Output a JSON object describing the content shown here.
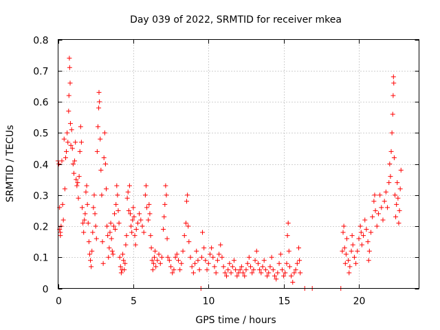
{
  "chart_data": {
    "type": "scatter",
    "title": "Day 039 of 2022, SRMTID for receiver mkea",
    "xlabel": "GPS time / hours",
    "ylabel": "SRMTID / TECUs",
    "xlim": [
      0,
      24
    ],
    "ylim": [
      0,
      0.8
    ],
    "x_ticks": [
      0,
      5,
      10,
      15,
      20
    ],
    "x_tick_labels": [
      "0",
      "5",
      "10",
      "15",
      "20"
    ],
    "y_ticks": [
      0,
      0.1,
      0.2,
      0.3,
      0.4,
      0.5,
      0.6,
      0.7,
      0.8
    ],
    "y_tick_labels": [
      "0",
      "0.1",
      "0.2",
      "0.3",
      "0.4",
      "0.5",
      "0.6",
      "0.7",
      "0.8"
    ],
    "grid": true,
    "marker": "+",
    "color": "#ff0000",
    "series": [
      {
        "points": [
          [
            0.0,
            0.41
          ],
          [
            0.05,
            0.4
          ],
          [
            0.1,
            0.26
          ],
          [
            0.1,
            0.19
          ],
          [
            0.15,
            0.18
          ],
          [
            0.15,
            0.17
          ],
          [
            0.2,
            0.2
          ],
          [
            0.25,
            0.41
          ],
          [
            0.3,
            0.27
          ],
          [
            0.35,
            0.22
          ],
          [
            0.4,
            0.48
          ],
          [
            0.45,
            0.32
          ],
          [
            0.5,
            0.42
          ],
          [
            0.55,
            0.44
          ],
          [
            0.6,
            0.5
          ],
          [
            0.65,
            0.47
          ],
          [
            0.7,
            0.57
          ],
          [
            0.72,
            0.62
          ],
          [
            0.75,
            0.74
          ],
          [
            0.77,
            0.71
          ],
          [
            0.8,
            0.66
          ],
          [
            0.82,
            0.53
          ],
          [
            0.85,
            0.46
          ],
          [
            0.9,
            0.51
          ],
          [
            0.95,
            0.45
          ],
          [
            1.0,
            0.4
          ],
          [
            1.05,
            0.37
          ],
          [
            1.1,
            0.41
          ],
          [
            1.15,
            0.47
          ],
          [
            1.2,
            0.35
          ],
          [
            1.25,
            0.33
          ],
          [
            1.3,
            0.34
          ],
          [
            1.35,
            0.29
          ],
          [
            1.4,
            0.36
          ],
          [
            1.45,
            0.44
          ],
          [
            1.5,
            0.52
          ],
          [
            1.55,
            0.47
          ],
          [
            1.6,
            0.26
          ],
          [
            1.65,
            0.21
          ],
          [
            1.7,
            0.18
          ],
          [
            1.75,
            0.22
          ],
          [
            1.8,
            0.24
          ],
          [
            1.85,
            0.31
          ],
          [
            1.9,
            0.33
          ],
          [
            1.95,
            0.27
          ],
          [
            2.0,
            0.21
          ],
          [
            2.05,
            0.15
          ],
          [
            2.1,
            0.11
          ],
          [
            2.15,
            0.09
          ],
          [
            2.2,
            0.07
          ],
          [
            2.25,
            0.12
          ],
          [
            2.3,
            0.18
          ],
          [
            2.35,
            0.26
          ],
          [
            2.4,
            0.3
          ],
          [
            2.45,
            0.24
          ],
          [
            2.5,
            0.2
          ],
          [
            2.55,
            0.16
          ],
          [
            2.6,
            0.44
          ],
          [
            2.65,
            0.52
          ],
          [
            2.7,
            0.58
          ],
          [
            2.72,
            0.63
          ],
          [
            2.75,
            0.6
          ],
          [
            2.8,
            0.48
          ],
          [
            2.85,
            0.38
          ],
          [
            2.9,
            0.3
          ],
          [
            2.95,
            0.15
          ],
          [
            3.0,
            0.08
          ],
          [
            3.05,
            0.42
          ],
          [
            3.1,
            0.5
          ],
          [
            3.15,
            0.4
          ],
          [
            3.2,
            0.32
          ],
          [
            3.25,
            0.2
          ],
          [
            3.3,
            0.17
          ],
          [
            3.35,
            0.1
          ],
          [
            3.4,
            0.13
          ],
          [
            3.45,
            0.18
          ],
          [
            3.5,
            0.21
          ],
          [
            3.55,
            0.16
          ],
          [
            3.6,
            0.12
          ],
          [
            3.65,
            0.11
          ],
          [
            3.7,
            0.2
          ],
          [
            3.75,
            0.24
          ],
          [
            3.8,
            0.19
          ],
          [
            3.85,
            0.27
          ],
          [
            3.9,
            0.33
          ],
          [
            3.95,
            0.3
          ],
          [
            4.0,
            0.25
          ],
          [
            4.05,
            0.21
          ],
          [
            4.1,
            0.1
          ],
          [
            4.15,
            0.07
          ],
          [
            4.2,
            0.05
          ],
          [
            4.25,
            0.06
          ],
          [
            4.3,
            0.11
          ],
          [
            4.35,
            0.09
          ],
          [
            4.4,
            0.06
          ],
          [
            4.45,
            0.08
          ],
          [
            4.5,
            0.14
          ],
          [
            4.55,
            0.17
          ],
          [
            4.6,
            0.29
          ],
          [
            4.65,
            0.31
          ],
          [
            4.7,
            0.25
          ],
          [
            4.75,
            0.33
          ],
          [
            4.8,
            0.24
          ],
          [
            4.85,
            0.2
          ],
          [
            4.9,
            0.18
          ],
          [
            4.95,
            0.22
          ],
          [
            5.0,
            0.26
          ],
          [
            5.05,
            0.23
          ],
          [
            5.1,
            0.17
          ],
          [
            5.15,
            0.14
          ],
          [
            5.2,
            0.19
          ],
          [
            5.3,
            0.21
          ],
          [
            5.4,
            0.24
          ],
          [
            5.5,
            0.22
          ],
          [
            5.6,
            0.2
          ],
          [
            5.7,
            0.18
          ],
          [
            5.8,
            0.3
          ],
          [
            5.85,
            0.33
          ],
          [
            5.9,
            0.26
          ],
          [
            6.0,
            0.22
          ],
          [
            6.05,
            0.27
          ],
          [
            6.1,
            0.24
          ],
          [
            6.15,
            0.17
          ],
          [
            6.2,
            0.13
          ],
          [
            6.25,
            0.09
          ],
          [
            6.3,
            0.06
          ],
          [
            6.35,
            0.08
          ],
          [
            6.4,
            0.1
          ],
          [
            6.45,
            0.12
          ],
          [
            6.5,
            0.07
          ],
          [
            6.6,
            0.09
          ],
          [
            6.7,
            0.11
          ],
          [
            6.8,
            0.08
          ],
          [
            6.9,
            0.1
          ],
          [
            7.0,
            0.19
          ],
          [
            7.05,
            0.23
          ],
          [
            7.1,
            0.27
          ],
          [
            7.15,
            0.33
          ],
          [
            7.2,
            0.3
          ],
          [
            7.25,
            0.16
          ],
          [
            7.3,
            0.1
          ],
          [
            7.4,
            0.09
          ],
          [
            7.5,
            0.07
          ],
          [
            7.6,
            0.05
          ],
          [
            7.7,
            0.06
          ],
          [
            7.8,
            0.1
          ],
          [
            7.9,
            0.11
          ],
          [
            8.0,
            0.09
          ],
          [
            8.1,
            0.06
          ],
          [
            8.2,
            0.08
          ],
          [
            8.3,
            0.12
          ],
          [
            8.4,
            0.17
          ],
          [
            8.5,
            0.21
          ],
          [
            8.55,
            0.28
          ],
          [
            8.6,
            0.3
          ],
          [
            8.65,
            0.2
          ],
          [
            8.7,
            0.15
          ],
          [
            8.8,
            0.1
          ],
          [
            8.9,
            0.07
          ],
          [
            9.0,
            0.05
          ],
          [
            9.1,
            0.08
          ],
          [
            9.2,
            0.12
          ],
          [
            9.3,
            0.09
          ],
          [
            9.4,
            0.06
          ],
          [
            9.5,
            0.0
          ],
          [
            9.55,
            0.1
          ],
          [
            9.6,
            0.18
          ],
          [
            9.7,
            0.13
          ],
          [
            9.8,
            0.09
          ],
          [
            9.9,
            0.06
          ],
          [
            10.0,
            0.08
          ],
          [
            10.1,
            0.11
          ],
          [
            10.2,
            0.13
          ],
          [
            10.3,
            0.1
          ],
          [
            10.4,
            0.07
          ],
          [
            10.5,
            0.05
          ],
          [
            10.6,
            0.09
          ],
          [
            10.7,
            0.11
          ],
          [
            10.8,
            0.14
          ],
          [
            10.9,
            0.1
          ],
          [
            11.0,
            0.07
          ],
          [
            11.1,
            0.05
          ],
          [
            11.2,
            0.04
          ],
          [
            11.3,
            0.06
          ],
          [
            11.4,
            0.08
          ],
          [
            11.5,
            0.05
          ],
          [
            11.6,
            0.07
          ],
          [
            11.7,
            0.09
          ],
          [
            11.8,
            0.06
          ],
          [
            11.9,
            0.04
          ],
          [
            12.0,
            0.05
          ],
          [
            12.1,
            0.06
          ],
          [
            12.2,
            0.07
          ],
          [
            12.3,
            0.05
          ],
          [
            12.4,
            0.04
          ],
          [
            12.5,
            0.06
          ],
          [
            12.6,
            0.08
          ],
          [
            12.7,
            0.1
          ],
          [
            12.8,
            0.07
          ],
          [
            12.9,
            0.05
          ],
          [
            13.0,
            0.06
          ],
          [
            13.1,
            0.09
          ],
          [
            13.2,
            0.12
          ],
          [
            13.3,
            0.08
          ],
          [
            13.4,
            0.06
          ],
          [
            13.5,
            0.05
          ],
          [
            13.6,
            0.07
          ],
          [
            13.7,
            0.09
          ],
          [
            13.8,
            0.06
          ],
          [
            13.9,
            0.04
          ],
          [
            14.0,
            0.05
          ],
          [
            14.1,
            0.07
          ],
          [
            14.2,
            0.1
          ],
          [
            14.3,
            0.06
          ],
          [
            14.4,
            0.04
          ],
          [
            14.5,
            0.03
          ],
          [
            14.6,
            0.05
          ],
          [
            14.7,
            0.08
          ],
          [
            14.8,
            0.11
          ],
          [
            14.9,
            0.06
          ],
          [
            15.0,
            0.04
          ],
          [
            15.1,
            0.05
          ],
          [
            15.2,
            0.08
          ],
          [
            15.25,
            0.17
          ],
          [
            15.3,
            0.21
          ],
          [
            15.35,
            0.12
          ],
          [
            15.4,
            0.07
          ],
          [
            15.5,
            0.04
          ],
          [
            15.6,
            0.02
          ],
          [
            15.7,
            0.05
          ],
          [
            15.8,
            0.06
          ],
          [
            15.9,
            0.08
          ],
          [
            16.0,
            0.13
          ],
          [
            16.05,
            0.09
          ],
          [
            16.1,
            0.05
          ],
          [
            16.4,
            0.0
          ],
          [
            16.9,
            0.0
          ],
          [
            18.8,
            0.0
          ],
          [
            18.9,
            0.12
          ],
          [
            18.95,
            0.18
          ],
          [
            19.0,
            0.2
          ],
          [
            19.05,
            0.13
          ],
          [
            19.1,
            0.08
          ],
          [
            19.15,
            0.11
          ],
          [
            19.2,
            0.16
          ],
          [
            19.3,
            0.09
          ],
          [
            19.35,
            0.05
          ],
          [
            19.4,
            0.07
          ],
          [
            19.5,
            0.12
          ],
          [
            19.55,
            0.17
          ],
          [
            19.6,
            0.14
          ],
          [
            19.7,
            0.1
          ],
          [
            19.8,
            0.08
          ],
          [
            19.9,
            0.12
          ],
          [
            20.0,
            0.16
          ],
          [
            20.1,
            0.2
          ],
          [
            20.15,
            0.18
          ],
          [
            20.2,
            0.14
          ],
          [
            20.3,
            0.17
          ],
          [
            20.4,
            0.22
          ],
          [
            20.5,
            0.19
          ],
          [
            20.6,
            0.15
          ],
          [
            20.65,
            0.09
          ],
          [
            20.7,
            0.12
          ],
          [
            20.8,
            0.18
          ],
          [
            20.9,
            0.23
          ],
          [
            21.0,
            0.28
          ],
          [
            21.05,
            0.3
          ],
          [
            21.1,
            0.25
          ],
          [
            21.2,
            0.2
          ],
          [
            21.3,
            0.24
          ],
          [
            21.4,
            0.3
          ],
          [
            21.5,
            0.26
          ],
          [
            21.6,
            0.22
          ],
          [
            21.7,
            0.28
          ],
          [
            21.8,
            0.31
          ],
          [
            21.9,
            0.26
          ],
          [
            22.0,
            0.34
          ],
          [
            22.05,
            0.4
          ],
          [
            22.1,
            0.36
          ],
          [
            22.15,
            0.44
          ],
          [
            22.2,
            0.5
          ],
          [
            22.25,
            0.56
          ],
          [
            22.28,
            0.62
          ],
          [
            22.3,
            0.68
          ],
          [
            22.32,
            0.66
          ],
          [
            22.35,
            0.42
          ],
          [
            22.4,
            0.3
          ],
          [
            22.45,
            0.23
          ],
          [
            22.5,
            0.27
          ],
          [
            22.55,
            0.34
          ],
          [
            22.6,
            0.29
          ],
          [
            22.65,
            0.21
          ],
          [
            22.7,
            0.25
          ],
          [
            22.75,
            0.32
          ],
          [
            22.8,
            0.38
          ]
        ]
      }
    ]
  }
}
